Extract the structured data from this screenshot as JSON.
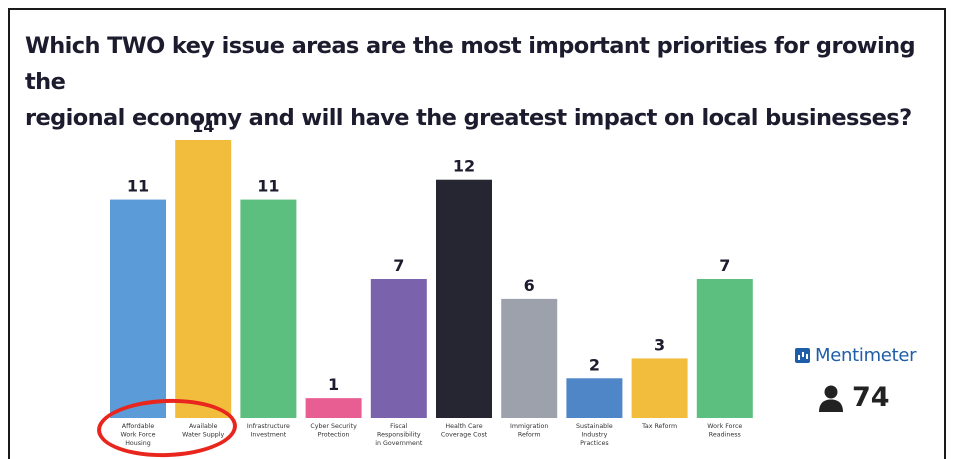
{
  "title": "Which TWO key issue areas are the most important priorities for growing the\nregional economy and will have the greatest impact on local businesses?",
  "brand": {
    "name": "Mentimeter",
    "icon": "mentimeter-logo-icon",
    "color": "#1e5ea8"
  },
  "participants": {
    "icon": "person-icon",
    "count": "74"
  },
  "annotation": {
    "shape": "red-oval",
    "color": "#e8261d",
    "highlights": [
      "Affordable Work Force Housing",
      "Available Water Supply"
    ]
  },
  "chart_data": {
    "type": "bar",
    "title": "Which TWO key issue areas are the most important priorities for growing the regional economy and will have the greatest impact on local businesses?",
    "xlabel": "",
    "ylabel": "",
    "ylim": [
      0,
      14
    ],
    "grid": false,
    "legend": "none",
    "categories": [
      "Affordable Work Force Housing",
      "Available Water Supply",
      "Infrastructure Investment",
      "Cyber Security Protection",
      "Fiscal Responsibility in Government",
      "Health Care Coverage Cost",
      "Immigration Reform",
      "Sustainable Industry Practices",
      "Tax Reform",
      "Work Force Readiness"
    ],
    "category_lines": [
      [
        "Affordable",
        "Work Force",
        "Housing"
      ],
      [
        "Available",
        "Water Supply"
      ],
      [
        "Infrastructure",
        "Investment"
      ],
      [
        "Cyber Security",
        "Protection"
      ],
      [
        "Fiscal",
        "Responsibility",
        "in Government"
      ],
      [
        "Health Care",
        "Coverage Cost"
      ],
      [
        "Immigration",
        "Reform"
      ],
      [
        "Sustainable",
        "Industry",
        "Practices"
      ],
      [
        "Tax Reform"
      ],
      [
        "Work Force",
        "Readiness"
      ]
    ],
    "values": [
      11,
      14,
      11,
      1,
      7,
      12,
      6,
      2,
      3,
      7
    ],
    "colors": [
      "#5b9bd8",
      "#f2bc3c",
      "#5cbf80",
      "#e85d92",
      "#7a62ad",
      "#262633",
      "#9ca1ab",
      "#4f86c8",
      "#f2bc3c",
      "#5cbf80"
    ]
  }
}
